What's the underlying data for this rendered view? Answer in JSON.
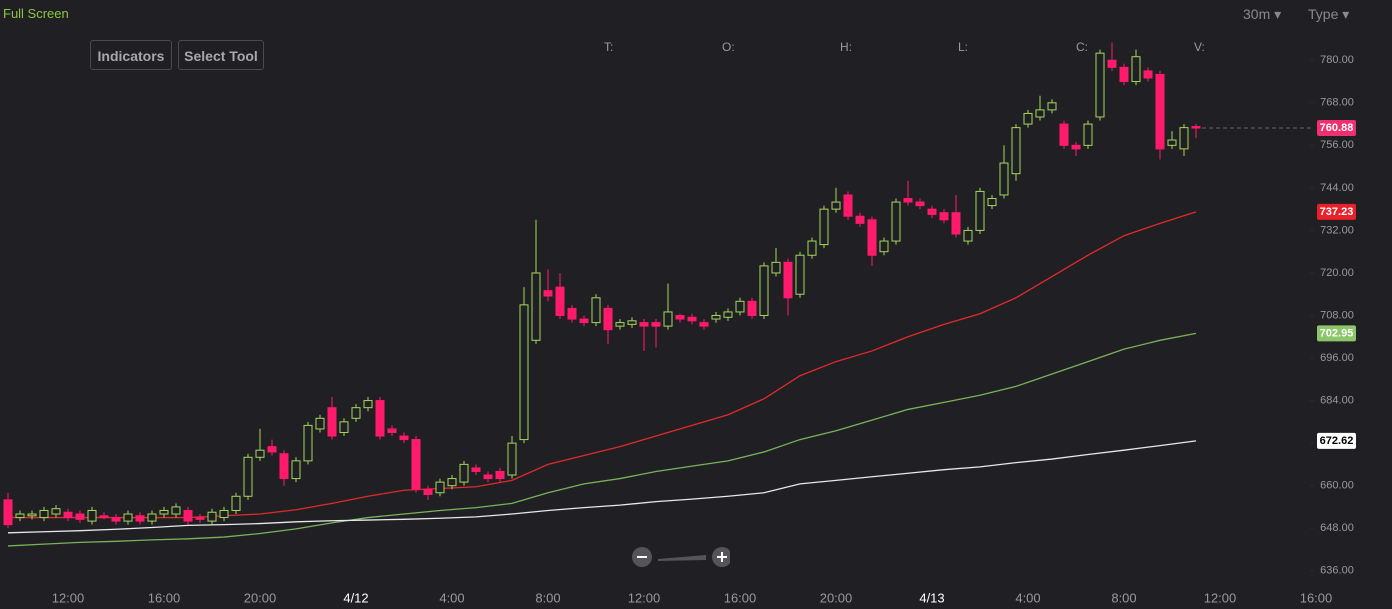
{
  "toolbar": {
    "full_screen": "Full Screen",
    "interval": "30m",
    "type": "Type",
    "indicators": "Indicators",
    "select_tool": "Select Tool"
  },
  "legend_fields": [
    "T:",
    "O:",
    "H:",
    "L:",
    "C:",
    "V:"
  ],
  "chart_data": {
    "type": "candlestick",
    "up_color": "#a4d65e",
    "down_color": "#ff1a6c",
    "open": [
      656,
      651,
      651.5,
      651,
      652,
      652.5,
      652,
      650,
      651.5,
      651,
      650,
      651.5,
      650,
      652,
      652,
      653,
      651,
      650,
      651,
      653,
      657,
      668,
      671,
      669,
      662,
      667,
      676,
      682,
      675,
      679,
      682,
      684,
      676,
      674,
      673,
      659,
      658,
      660,
      661,
      665,
      663,
      664,
      663,
      673,
      701,
      715,
      716,
      710,
      707,
      706,
      710,
      705,
      705.5,
      706,
      706,
      705,
      708,
      707.5,
      706,
      707,
      707.5,
      709,
      712,
      708,
      720,
      723,
      714,
      725,
      728,
      738,
      742,
      736,
      735,
      726,
      729,
      741,
      740,
      738,
      737,
      737,
      729,
      732,
      739,
      742,
      748,
      762,
      764,
      766,
      762,
      756,
      756,
      764,
      780,
      778,
      774,
      777,
      776,
      756,
      755,
      761.3
    ],
    "high": [
      658,
      653,
      653,
      654,
      654.5,
      653.5,
      653,
      654,
      652.5,
      652,
      653,
      652.5,
      653,
      654,
      655,
      654,
      652,
      653.5,
      654,
      658,
      669,
      676,
      673,
      670,
      668,
      678,
      680,
      685,
      679,
      683,
      685,
      685,
      677,
      675,
      674,
      660,
      662,
      663,
      667,
      666,
      664,
      665,
      674,
      716,
      735,
      721,
      720,
      711,
      708,
      714,
      711,
      707,
      707.5,
      707,
      707,
      717,
      708.5,
      708.5,
      707,
      709,
      710,
      713,
      713,
      723,
      727,
      724,
      726,
      730,
      739,
      744,
      743,
      737,
      736,
      730,
      741,
      746,
      741,
      739,
      738,
      742,
      733,
      744,
      742,
      756,
      762,
      766,
      770,
      769,
      763,
      757,
      763,
      783,
      785,
      779,
      783,
      778,
      777,
      760,
      762,
      762
    ],
    "low": [
      648,
      650,
      650.5,
      650,
      651,
      650,
      649.5,
      649,
      650.5,
      649,
      649,
      649,
      649,
      651,
      651,
      649,
      649.5,
      649,
      650,
      652,
      656,
      667,
      668.5,
      660,
      661,
      666,
      675,
      673,
      674,
      678,
      681,
      673,
      674,
      672,
      658,
      656,
      657,
      659,
      660,
      663,
      661,
      661,
      662,
      672,
      700,
      712,
      707,
      706,
      705,
      705,
      700,
      704,
      704.5,
      698,
      699,
      704,
      706,
      705.5,
      704,
      706,
      706.5,
      708,
      707,
      707,
      719,
      708,
      713,
      724,
      727,
      737,
      735,
      733,
      722,
      725,
      728,
      739,
      738,
      735.5,
      734,
      730,
      728,
      731,
      738,
      741,
      746,
      761,
      763,
      765,
      755,
      753,
      755,
      763,
      777,
      773,
      773,
      774,
      752,
      755,
      753,
      758
    ],
    "close": [
      649,
      652,
      652,
      653,
      653.5,
      651,
      650.5,
      653,
      651,
      650,
      652,
      650,
      652,
      653,
      654,
      650,
      650.5,
      652.5,
      653,
      657,
      668,
      670,
      669.5,
      662,
      667,
      677,
      679,
      674,
      678,
      682,
      684,
      674,
      675,
      673,
      659,
      657.5,
      661,
      662,
      666,
      664,
      662,
      662,
      672,
      711,
      720,
      713.5,
      708,
      707,
      706,
      713,
      704,
      706,
      706.5,
      705,
      705,
      709,
      707,
      706.5,
      705,
      708,
      709,
      712,
      708,
      722,
      723,
      713,
      725,
      729,
      738,
      740,
      736,
      734,
      725,
      729,
      740,
      740,
      739,
      736.5,
      735,
      731,
      732,
      743,
      741,
      751,
      761,
      765,
      766,
      768,
      756,
      755,
      762,
      782,
      778,
      774,
      781,
      775,
      755,
      757.5,
      761,
      760.88
    ],
    "series": [
      {
        "color": "#e02a2a",
        "label_color": "#e8202a",
        "values": [
          651,
          651,
          651,
          651,
          651,
          651,
          651.5,
          652,
          653.2,
          655,
          657,
          658.7,
          659.2,
          659.7,
          661.5,
          666,
          668.5,
          671,
          674,
          677,
          680,
          684.5,
          691,
          695,
          698,
          702,
          705.5,
          708.5,
          713,
          719,
          725,
          730.5,
          734,
          737.23
        ]
      },
      {
        "color": "#78b25a",
        "label_color": "#8cc66a",
        "values": [
          643,
          643.5,
          644,
          644.3,
          644.7,
          645,
          645.5,
          646.5,
          647.8,
          649.5,
          651,
          652,
          653,
          653.8,
          655,
          658,
          660.5,
          662,
          664,
          665.5,
          667,
          669.5,
          673,
          675.5,
          678.5,
          681.5,
          683.5,
          685.5,
          688,
          691.5,
          695,
          698.5,
          701,
          702.95
        ]
      },
      {
        "color": "#e8e8e8",
        "label_color": "#ffffff",
        "values": [
          646.7,
          647,
          647.3,
          647.7,
          648.2,
          648.8,
          649,
          649.3,
          649.8,
          650.1,
          650.3,
          650.5,
          650.8,
          651.2,
          652,
          653,
          653.8,
          654.5,
          655.5,
          656.2,
          657,
          658,
          660.5,
          661.5,
          662.5,
          663.5,
          664.5,
          665.3,
          666.5,
          667.5,
          668.8,
          670,
          671.3,
          672.62
        ]
      }
    ],
    "last_price_color": "#f0306e",
    "ylim": [
      630,
      797
    ],
    "yticks": [
      {
        "value": 636,
        "label": "636.00"
      },
      {
        "value": 648,
        "label": "648.00"
      },
      {
        "value": 660,
        "label": "660.00"
      },
      {
        "value": 672,
        "label": "672.00"
      },
      {
        "value": 684,
        "label": "684.00"
      },
      {
        "value": 696,
        "label": "696.00"
      },
      {
        "value": 708,
        "label": "708.00"
      },
      {
        "value": 720,
        "label": "720.00"
      },
      {
        "value": 732,
        "label": "732.00"
      },
      {
        "value": 744,
        "label": "744.00"
      },
      {
        "value": 756,
        "label": "756.00"
      },
      {
        "value": 768,
        "label": "768.00"
      },
      {
        "value": 780,
        "label": "780.00"
      }
    ],
    "x_labels": [
      "12:00",
      "16:00",
      "20:00",
      "4/12",
      "4:00",
      "8:00",
      "12:00",
      "16:00",
      "20:00",
      "4/13",
      "4:00",
      "8:00",
      "12:00",
      "16:00"
    ]
  }
}
